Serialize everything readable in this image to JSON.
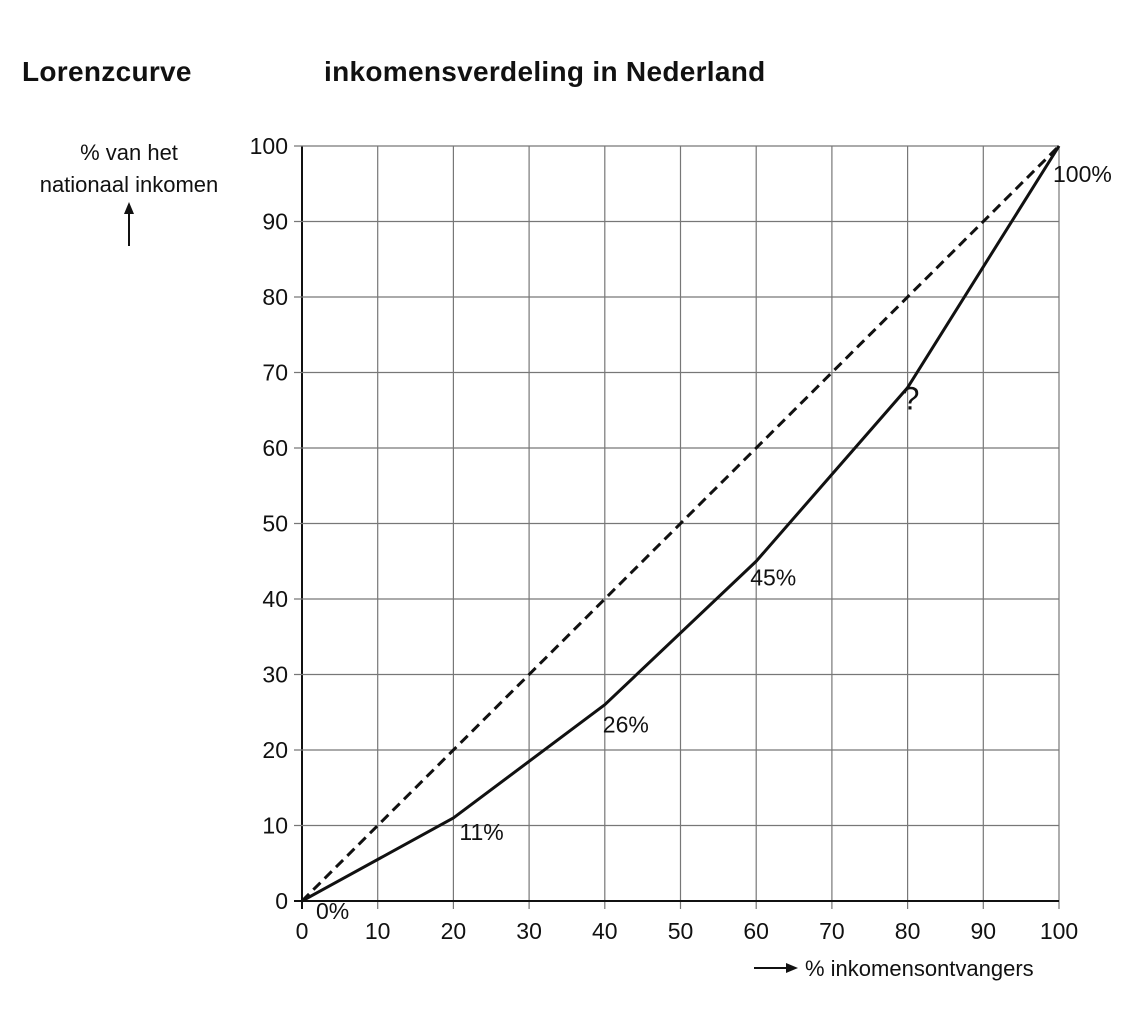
{
  "header": {
    "title_left": "Lorenzcurve",
    "title_right": "inkomensverdeling in Nederland"
  },
  "chart_data": {
    "type": "line",
    "title": "Lorenzcurve inkomensverdeling in Nederland",
    "ylabel_line1": "% van het",
    "ylabel_line2": "nationaal inkomen",
    "xlabel": "% inkomensontvangers",
    "xlim": [
      0,
      100
    ],
    "ylim": [
      0,
      100
    ],
    "xticks": [
      0,
      10,
      20,
      30,
      40,
      50,
      60,
      70,
      80,
      90,
      100
    ],
    "yticks": [
      0,
      10,
      20,
      30,
      40,
      50,
      60,
      70,
      80,
      90,
      100
    ],
    "grid": true,
    "series": [
      {
        "style": "solid",
        "x": [
          0,
          20,
          40,
          60,
          80,
          100
        ],
        "y": [
          0,
          11,
          26,
          45,
          68,
          100
        ]
      },
      {
        "style": "dashed",
        "x": [
          0,
          100
        ],
        "y": [
          0,
          100
        ]
      }
    ],
    "annotations": [
      {
        "x": 0,
        "y": 0,
        "text": "0%"
      },
      {
        "x": 20,
        "y": 11,
        "text": "11%"
      },
      {
        "x": 40,
        "y": 26,
        "text": "26%"
      },
      {
        "x": 60,
        "y": 45,
        "text": "45%"
      },
      {
        "x": 80,
        "y": 68,
        "text": "?"
      },
      {
        "x": 100,
        "y": 100,
        "text": "100%"
      }
    ],
    "colors": {
      "line": "#111111",
      "grid": "#777777",
      "axis": "#111111"
    }
  }
}
